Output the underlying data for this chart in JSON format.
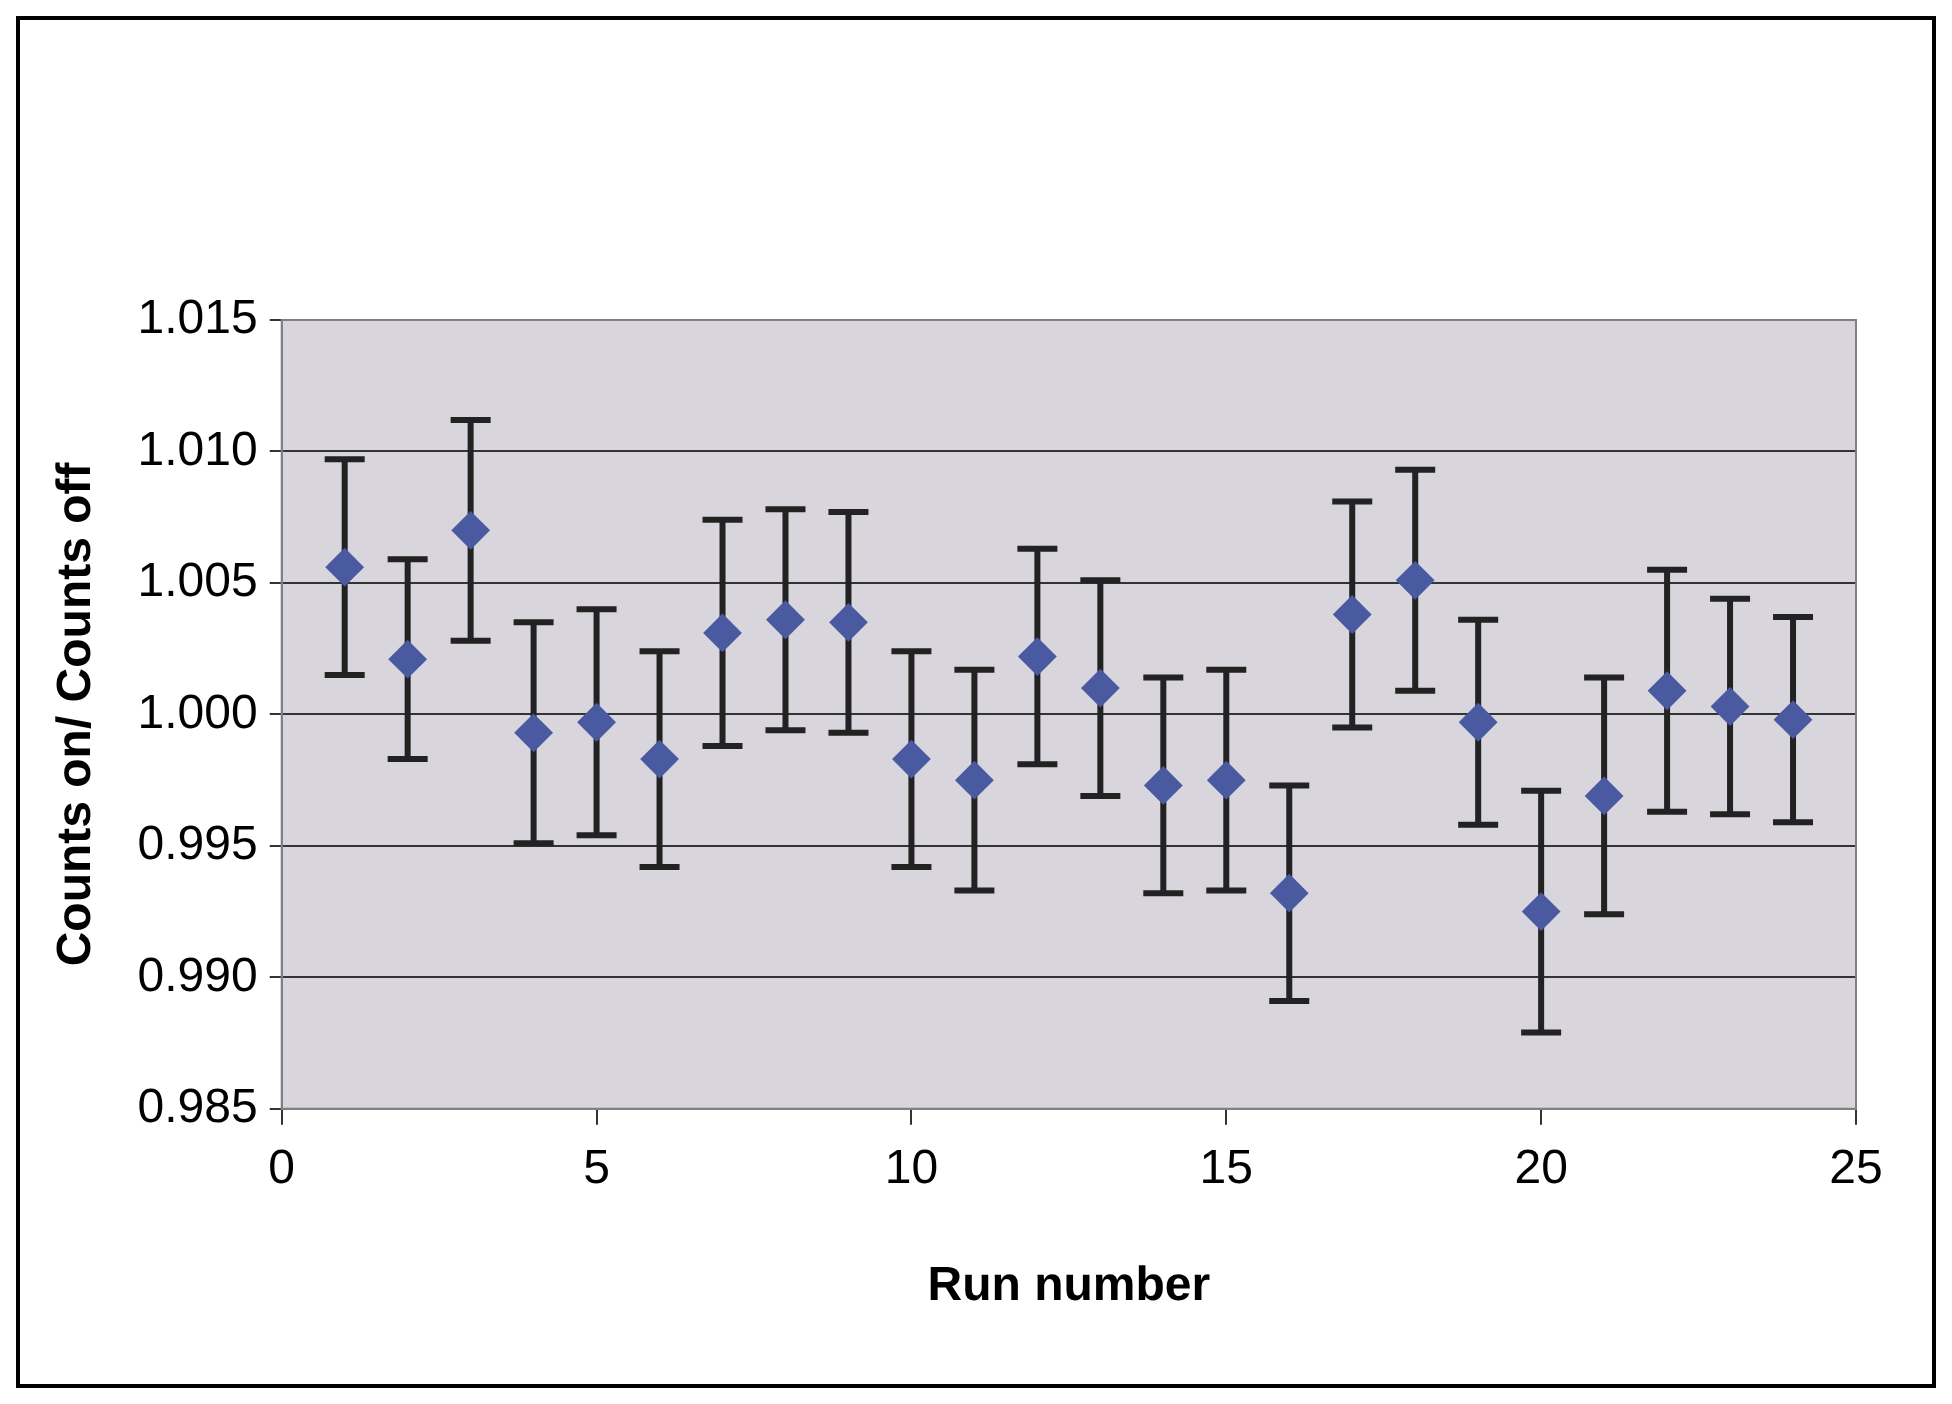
{
  "chart_data": {
    "type": "scatter",
    "xlabel": "Run number",
    "ylabel": "Counts on/ Counts off",
    "x": [
      1,
      2,
      3,
      4,
      5,
      6,
      7,
      8,
      9,
      10,
      11,
      12,
      13,
      14,
      15,
      16,
      17,
      18,
      19,
      20,
      21,
      22,
      23,
      24
    ],
    "values": [
      1.0056,
      1.0021,
      1.007,
      0.9993,
      0.9997,
      0.9983,
      1.0031,
      1.0036,
      1.0035,
      0.9983,
      0.9975,
      1.0022,
      1.001,
      0.9973,
      0.9975,
      0.9932,
      1.0038,
      1.0051,
      0.9997,
      0.9925,
      0.9969,
      1.0009,
      1.0003,
      0.9998
    ],
    "errors": [
      0.0041,
      0.0038,
      0.0042,
      0.0042,
      0.0043,
      0.0041,
      0.0043,
      0.0042,
      0.0042,
      0.0041,
      0.0042,
      0.0041,
      0.0041,
      0.0041,
      0.0042,
      0.0041,
      0.0043,
      0.0042,
      0.0039,
      0.0046,
      0.0045,
      0.0046,
      0.0041,
      0.0039
    ],
    "color": "#4a5aa0",
    "marker": "diamond",
    "xlim": [
      0,
      25
    ],
    "xticks": [
      0,
      5,
      10,
      15,
      20,
      25
    ],
    "ylim": [
      0.985,
      1.015
    ],
    "yticks": [
      {
        "value": 0.985,
        "label": "0.985"
      },
      {
        "value": 0.99,
        "label": "0.990"
      },
      {
        "value": 0.995,
        "label": "0.995"
      },
      {
        "value": 1,
        "label": "1.000"
      },
      {
        "value": 1.005,
        "label": "1.005"
      },
      {
        "value": 1.01,
        "label": "1.010"
      },
      {
        "value": 1.015,
        "label": "1.015"
      }
    ],
    "grid": "y",
    "legend": false
  }
}
